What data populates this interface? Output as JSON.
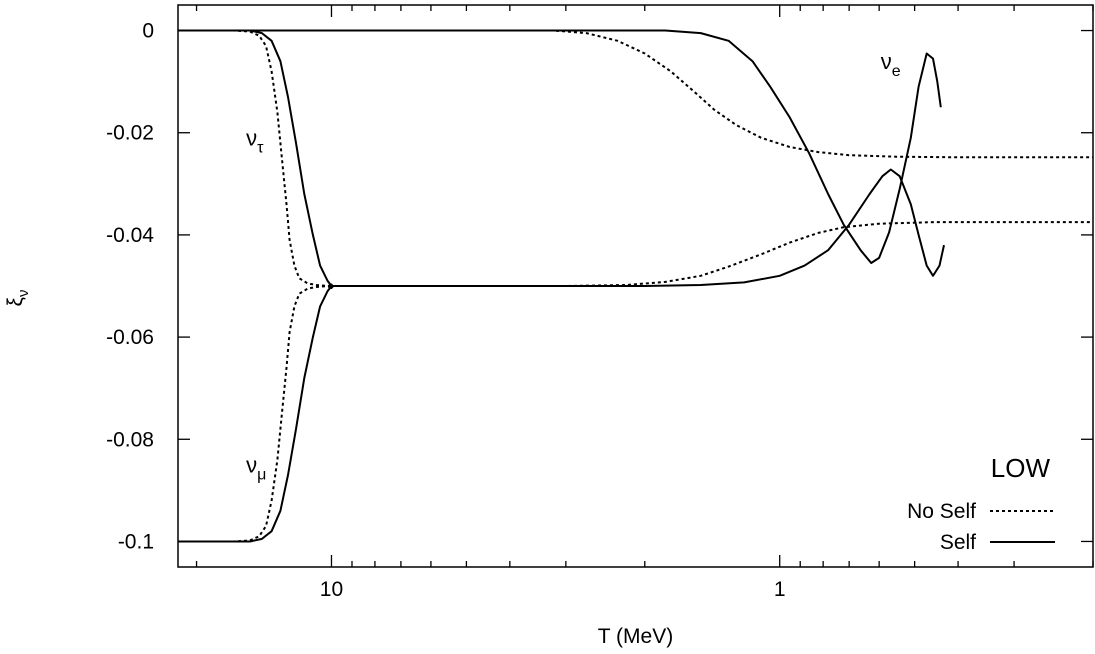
{
  "chart_data": {
    "type": "line",
    "xlabel": "T (MeV)",
    "ylabel": "ξ",
    "ylabel_sub": "ν",
    "x_scale": "log",
    "x_reversed": true,
    "xlim": [
      22,
      0.2
    ],
    "ylim": [
      -0.105,
      0.005
    ],
    "x_ticks": [
      {
        "value": 10,
        "label": "10"
      },
      {
        "value": 1,
        "label": "1"
      }
    ],
    "y_ticks": [
      {
        "value": 0,
        "label": "0"
      },
      {
        "value": -0.02,
        "label": "-0.02"
      },
      {
        "value": -0.04,
        "label": "-0.04"
      },
      {
        "value": -0.06,
        "label": "-0.06"
      },
      {
        "value": -0.08,
        "label": "-0.08"
      },
      {
        "value": -0.1,
        "label": "-0.1"
      }
    ],
    "annotations": [
      {
        "base": "ν",
        "sub": "τ",
        "x": 15.5,
        "y": -0.0225
      },
      {
        "base": "ν",
        "sub": "μ",
        "x": 15.5,
        "y": -0.0865
      },
      {
        "base": "ν",
        "sub": "e",
        "x": 0.595,
        "y": -0.0075
      }
    ],
    "legend": {
      "position": "bottom-right",
      "title": "LOW",
      "entries": [
        "No Self",
        "Self"
      ]
    },
    "series": [
      {
        "name": "No Self",
        "dash": "dotted",
        "curves": [
          {
            "points": [
              [
                22,
                0
              ],
              [
                16.5,
                0
              ],
              [
                15.2,
                -0.0002
              ],
              [
                14.5,
                -0.001
              ],
              [
                14,
                -0.003
              ],
              [
                13.6,
                -0.008
              ],
              [
                13.2,
                -0.016
              ],
              [
                12.9,
                -0.025
              ],
              [
                12.6,
                -0.034
              ],
              [
                12.4,
                -0.041
              ],
              [
                12.1,
                -0.046
              ],
              [
                11.8,
                -0.0485
              ],
              [
                11.3,
                -0.0495
              ],
              [
                10.8,
                -0.0498
              ],
              [
                10.2,
                -0.05
              ],
              [
                5,
                -0.05
              ],
              [
                3,
                -0.05
              ],
              [
                2.2,
                -0.0498
              ],
              [
                1.8,
                -0.0492
              ],
              [
                1.5,
                -0.048
              ],
              [
                1.3,
                -0.0462
              ],
              [
                1.1,
                -0.0438
              ],
              [
                0.95,
                -0.0415
              ],
              [
                0.82,
                -0.0396
              ],
              [
                0.72,
                -0.0385
              ],
              [
                0.6,
                -0.0378
              ],
              [
                0.45,
                -0.0375
              ],
              [
                0.2,
                -0.0375
              ]
            ]
          },
          {
            "points": [
              [
                22,
                -0.1
              ],
              [
                16.5,
                -0.1
              ],
              [
                15.2,
                -0.0998
              ],
              [
                14.5,
                -0.099
              ],
              [
                14,
                -0.097
              ],
              [
                13.6,
                -0.092
              ],
              [
                13.2,
                -0.084
              ],
              [
                12.9,
                -0.075
              ],
              [
                12.6,
                -0.066
              ],
              [
                12.4,
                -0.059
              ],
              [
                12.1,
                -0.054
              ],
              [
                11.8,
                -0.0515
              ],
              [
                11.3,
                -0.0505
              ],
              [
                10.8,
                -0.0502
              ],
              [
                10.2,
                -0.05
              ]
            ]
          },
          {
            "points": [
              [
                22,
                0
              ],
              [
                3.2,
                0
              ],
              [
                2.7,
                -0.0005
              ],
              [
                2.3,
                -0.002
              ],
              [
                2,
                -0.0045
              ],
              [
                1.75,
                -0.008
              ],
              [
                1.55,
                -0.012
              ],
              [
                1.4,
                -0.0155
              ],
              [
                1.25,
                -0.0185
              ],
              [
                1.1,
                -0.021
              ],
              [
                0.95,
                -0.0228
              ],
              [
                0.82,
                -0.0238
              ],
              [
                0.7,
                -0.0244
              ],
              [
                0.55,
                -0.0247
              ],
              [
                0.4,
                -0.0248
              ],
              [
                0.2,
                -0.0248
              ]
            ]
          }
        ]
      },
      {
        "name": "Self",
        "dash": "solid",
        "curves": [
          {
            "points": [
              [
                22,
                0
              ],
              [
                15.2,
                0
              ],
              [
                14.3,
                -0.0005
              ],
              [
                13.6,
                -0.002
              ],
              [
                13,
                -0.006
              ],
              [
                12.5,
                -0.013
              ],
              [
                12,
                -0.022
              ],
              [
                11.5,
                -0.032
              ],
              [
                11,
                -0.04
              ],
              [
                10.6,
                -0.046
              ],
              [
                10.2,
                -0.049
              ],
              [
                10,
                -0.05
              ]
            ]
          },
          {
            "points": [
              [
                22,
                -0.1
              ],
              [
                15.2,
                -0.1
              ],
              [
                14.3,
                -0.0995
              ],
              [
                13.6,
                -0.098
              ],
              [
                13,
                -0.094
              ],
              [
                12.5,
                -0.087
              ],
              [
                12,
                -0.078
              ],
              [
                11.5,
                -0.068
              ],
              [
                11,
                -0.06
              ],
              [
                10.6,
                -0.054
              ],
              [
                10.2,
                -0.051
              ],
              [
                10,
                -0.05
              ],
              [
                9.7,
                -0.05
              ],
              [
                5,
                -0.05
              ],
              [
                2,
                -0.05
              ],
              [
                1.5,
                -0.0498
              ],
              [
                1.2,
                -0.0493
              ],
              [
                1,
                -0.048
              ],
              [
                0.88,
                -0.046
              ],
              [
                0.78,
                -0.043
              ],
              [
                0.7,
                -0.038
              ],
              [
                0.63,
                -0.032
              ],
              [
                0.59,
                -0.0285
              ],
              [
                0.565,
                -0.0272
              ],
              [
                0.54,
                -0.0285
              ],
              [
                0.51,
                -0.034
              ],
              [
                0.49,
                -0.04
              ],
              [
                0.47,
                -0.046
              ],
              [
                0.455,
                -0.048
              ],
              [
                0.44,
                -0.046
              ],
              [
                0.43,
                -0.042
              ]
            ]
          },
          {
            "points": [
              [
                22,
                0
              ],
              [
                1.8,
                0
              ],
              [
                1.5,
                -0.0005
              ],
              [
                1.3,
                -0.002
              ],
              [
                1.15,
                -0.006
              ],
              [
                1.05,
                -0.011
              ],
              [
                0.95,
                -0.017
              ],
              [
                0.86,
                -0.024
              ],
              [
                0.78,
                -0.032
              ],
              [
                0.72,
                -0.038
              ],
              [
                0.66,
                -0.043
              ],
              [
                0.625,
                -0.0455
              ],
              [
                0.6,
                -0.0445
              ],
              [
                0.57,
                -0.0395
              ],
              [
                0.54,
                -0.031
              ],
              [
                0.51,
                -0.021
              ],
              [
                0.49,
                -0.011
              ],
              [
                0.47,
                -0.0045
              ],
              [
                0.455,
                -0.0055
              ],
              [
                0.445,
                -0.01
              ],
              [
                0.437,
                -0.015
              ]
            ]
          },
          {
            "points": [
              [
                10.15,
                -0.0501
              ],
              [
                10.09,
                -0.0498
              ],
              [
                10.0,
                -0.0497
              ],
              [
                9.93,
                -0.0501
              ],
              [
                10.0,
                -0.0504
              ],
              [
                10.09,
                -0.0503
              ],
              [
                10.15,
                -0.0501
              ]
            ]
          }
        ]
      }
    ]
  }
}
